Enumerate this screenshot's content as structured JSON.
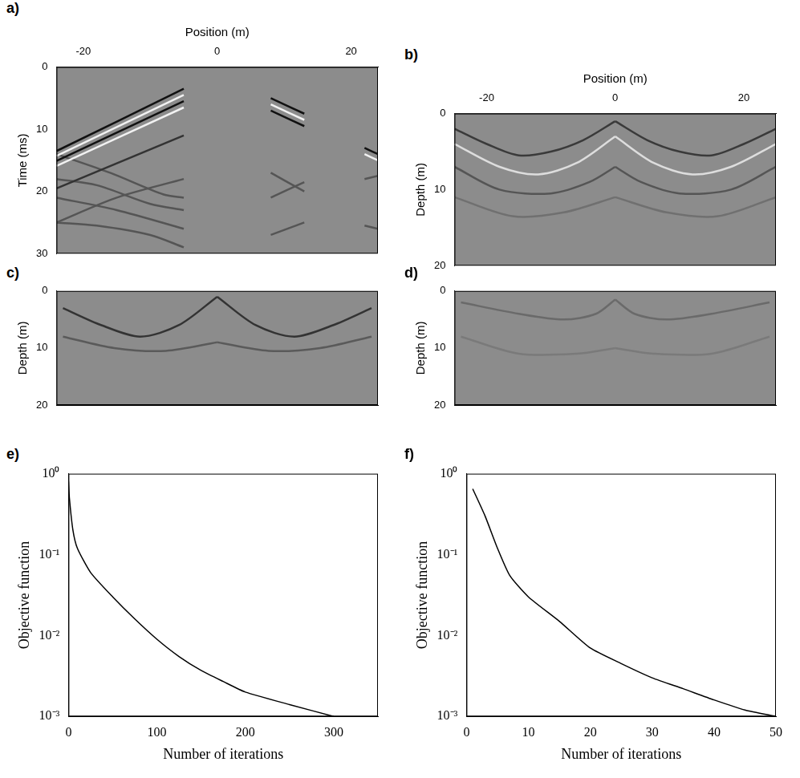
{
  "chart_data": [
    {
      "type": "seismic",
      "panel": "a)",
      "x_label": "Position (m)",
      "y_label": "Time (ms)",
      "xlim": [
        -24,
        24
      ],
      "xticks": [
        -20,
        0,
        20
      ],
      "ylim": [
        0,
        30
      ],
      "yticks": [
        0,
        10,
        20,
        30
      ],
      "grid": false,
      "series": [
        {
          "color": "#111111",
          "x": [
            -5,
            -24
          ],
          "y": [
            3.5,
            13.5
          ]
        },
        {
          "color": "#f2f2f2",
          "x": [
            -5,
            -24
          ],
          "y": [
            4.5,
            14.3
          ]
        },
        {
          "color": "#111111",
          "x": [
            -5,
            -24
          ],
          "y": [
            5.5,
            15.1
          ]
        },
        {
          "color": "#f2f2f2",
          "x": [
            -5,
            -24
          ],
          "y": [
            6.5,
            15.9
          ]
        },
        {
          "color": "#333333",
          "x": [
            -5,
            -24
          ],
          "y": [
            11,
            19.5
          ]
        },
        {
          "color": "#111111",
          "x": [
            8,
            13
          ],
          "y": [
            5,
            7.5
          ]
        },
        {
          "color": "#f2f2f2",
          "x": [
            8,
            13
          ],
          "y": [
            6,
            8.5
          ]
        },
        {
          "color": "#111111",
          "x": [
            8,
            13
          ],
          "y": [
            7,
            9.5
          ]
        },
        {
          "color": "#111111",
          "x": [
            22,
            24
          ],
          "y": [
            13,
            14
          ]
        },
        {
          "color": "#f2f2f2",
          "x": [
            22,
            24
          ],
          "y": [
            14,
            15
          ]
        },
        {
          "color": "#555555",
          "x": [
            -24,
            -16,
            -8,
            -5
          ],
          "y": [
            14,
            17,
            20.5,
            21
          ]
        },
        {
          "color": "#555555",
          "x": [
            -24,
            -18,
            -10,
            -5
          ],
          "y": [
            18,
            19,
            22,
            23
          ]
        },
        {
          "color": "#555555",
          "x": [
            -24,
            -15,
            -5
          ],
          "y": [
            21,
            23,
            26
          ]
        },
        {
          "color": "#555555",
          "x": [
            -24,
            -18,
            -10,
            -5
          ],
          "y": [
            25,
            25.5,
            27,
            29
          ]
        },
        {
          "color": "#555555",
          "x": [
            -5,
            -15,
            -24
          ],
          "y": [
            18,
            21,
            25
          ]
        },
        {
          "color": "#555555",
          "x": [
            8,
            13
          ],
          "y": [
            17,
            20
          ]
        },
        {
          "color": "#555555",
          "x": [
            8,
            13
          ],
          "y": [
            21,
            18.5
          ]
        },
        {
          "color": "#555555",
          "x": [
            8,
            13
          ],
          "y": [
            27,
            25
          ]
        },
        {
          "color": "#555555",
          "x": [
            22,
            24
          ],
          "y": [
            18,
            17.5
          ]
        },
        {
          "color": "#555555",
          "x": [
            22,
            24
          ],
          "y": [
            25.5,
            26
          ]
        }
      ]
    },
    {
      "type": "seismic",
      "panel": "b)",
      "x_label": "Position (m)",
      "y_label": "Depth (m)",
      "xlim": [
        -25,
        25
      ],
      "xticks": [
        -20,
        0,
        20
      ],
      "ylim": [
        0,
        20
      ],
      "yticks": [
        0,
        10,
        20
      ],
      "grid": false,
      "series": [
        {
          "color": "#3a3a3a",
          "x": [
            -25,
            -20,
            -15,
            -10,
            -5,
            0
          ],
          "y": [
            2,
            4,
            5.5,
            5,
            3.5,
            1
          ]
        },
        {
          "color": "#3a3a3a",
          "x": [
            0,
            5,
            10,
            15,
            20,
            25
          ],
          "y": [
            1,
            3.5,
            5,
            5.5,
            4,
            2
          ]
        },
        {
          "color": "#dddddd",
          "x": [
            -25,
            -18,
            -12,
            -6,
            0
          ],
          "y": [
            4,
            7,
            8,
            6.5,
            3
          ]
        },
        {
          "color": "#dddddd",
          "x": [
            0,
            6,
            12,
            18,
            25
          ],
          "y": [
            3,
            6.5,
            8,
            7,
            4
          ]
        },
        {
          "color": "#555555",
          "x": [
            -25,
            -18,
            -10,
            -4,
            0
          ],
          "y": [
            7,
            10,
            10.5,
            9,
            7
          ]
        },
        {
          "color": "#555555",
          "x": [
            0,
            4,
            10,
            18,
            25
          ],
          "y": [
            7,
            9,
            10.5,
            10,
            7
          ]
        },
        {
          "color": "#707070",
          "x": [
            -25,
            -16,
            -8,
            0
          ],
          "y": [
            11,
            13.5,
            13,
            11
          ]
        },
        {
          "color": "#707070",
          "x": [
            0,
            8,
            16,
            25
          ],
          "y": [
            11,
            13,
            13.5,
            11
          ]
        }
      ]
    },
    {
      "type": "seismic",
      "panel": "c)",
      "y_label": "Depth (m)",
      "tick_labels": "y",
      "xlim": [
        -25,
        25
      ],
      "ylim": [
        0,
        20
      ],
      "yticks": [
        0,
        10,
        20
      ],
      "grid": false,
      "series": [
        {
          "color": "#333333",
          "x": [
            -24,
            -18,
            -12,
            -6,
            0
          ],
          "y": [
            3,
            6,
            8,
            6,
            1
          ]
        },
        {
          "color": "#333333",
          "x": [
            0,
            6,
            12,
            18,
            24
          ],
          "y": [
            1,
            6,
            8,
            6,
            3
          ]
        },
        {
          "color": "#5a5a5a",
          "x": [
            -24,
            -16,
            -8,
            0
          ],
          "y": [
            8,
            10,
            10.5,
            9
          ]
        },
        {
          "color": "#5a5a5a",
          "x": [
            0,
            8,
            16,
            24
          ],
          "y": [
            9,
            10.5,
            10,
            8
          ]
        }
      ]
    },
    {
      "type": "seismic",
      "panel": "d)",
      "y_label": "Depth (m)",
      "tick_labels": "y",
      "xlim": [
        -25,
        25
      ],
      "ylim": [
        0,
        20
      ],
      "yticks": [
        0,
        10,
        20
      ],
      "grid": false,
      "series": [
        {
          "color": "#6a6a6a",
          "x": [
            -24,
            -15,
            -8,
            -3,
            0
          ],
          "y": [
            2,
            4,
            5,
            4,
            1.5
          ]
        },
        {
          "color": "#6a6a6a",
          "x": [
            0,
            3,
            8,
            15,
            24
          ],
          "y": [
            1.5,
            4,
            5,
            4,
            2
          ]
        },
        {
          "color": "#7a7a7a",
          "x": [
            -24,
            -15,
            -6,
            0
          ],
          "y": [
            8,
            11,
            11,
            10
          ]
        },
        {
          "color": "#7a7a7a",
          "x": [
            0,
            6,
            15,
            24
          ],
          "y": [
            10,
            11,
            11,
            8
          ]
        }
      ]
    },
    {
      "type": "line",
      "panel": "e)",
      "x_label": "Number of iterations",
      "y_label": "Objective function",
      "log": "y",
      "grid": false,
      "color": "#000000",
      "xlim": [
        0,
        350
      ],
      "xticks": [
        0,
        100,
        200,
        300
      ],
      "ylim": [
        0.001,
        1
      ],
      "yticks": [
        {
          "value": 0.001,
          "label": "10⁻³"
        },
        {
          "value": 0.01,
          "label": "10⁻²"
        },
        {
          "value": 0.1,
          "label": "10⁻¹"
        },
        {
          "value": 1,
          "label": "10⁰"
        }
      ],
      "x": [
        0,
        1,
        5,
        10,
        25,
        50,
        75,
        100,
        125,
        150,
        175,
        200,
        250,
        300
      ],
      "values": [
        0.8,
        0.5,
        0.2,
        0.12,
        0.06,
        0.03,
        0.016,
        0.009,
        0.0055,
        0.0037,
        0.0027,
        0.002,
        0.0014,
        0.001
      ]
    },
    {
      "type": "line",
      "panel": "f)",
      "x_label": "Number of iterations",
      "y_label": "Objective function",
      "log": "y",
      "grid": false,
      "color": "#000000",
      "xlim": [
        0,
        50
      ],
      "xticks": [
        0,
        10,
        20,
        30,
        40,
        50
      ],
      "ylim": [
        0.001,
        1
      ],
      "yticks": [
        {
          "value": 0.001,
          "label": "10⁻³"
        },
        {
          "value": 0.01,
          "label": "10⁻²"
        },
        {
          "value": 0.1,
          "label": "10⁻¹"
        },
        {
          "value": 1,
          "label": "10⁰"
        }
      ],
      "x": [
        1,
        3,
        5,
        7,
        10,
        15,
        20,
        25,
        30,
        35,
        40,
        45,
        50
      ],
      "values": [
        0.65,
        0.3,
        0.12,
        0.055,
        0.03,
        0.015,
        0.007,
        0.0045,
        0.003,
        0.0022,
        0.0016,
        0.0012,
        0.001
      ]
    }
  ]
}
